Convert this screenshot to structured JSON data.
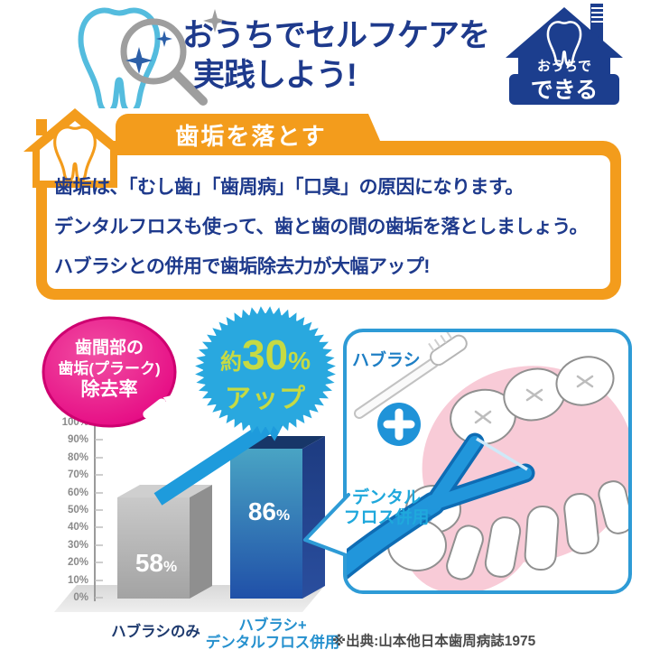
{
  "header": {
    "title_line1": "おうちでセルフケアを",
    "title_line2": "実践しよう!",
    "badge": {
      "top": "おうちで",
      "bottom": "できる"
    }
  },
  "plaque_section": {
    "tab_label": "歯垢を落とす",
    "body_lines": [
      "歯垢は、「むし歯」「歯周病」「口臭」の原因になります。",
      "デンタルフロスも使って、歯と歯の間の歯垢を落としましょう。",
      "ハブラシとの併用で歯垢除去力が大幅アップ!"
    ]
  },
  "stat_badge": {
    "line1": "歯間部の",
    "line2": "歯垢(プラーク)",
    "line3": "除去率"
  },
  "burst": {
    "prefix": "約",
    "value": "30",
    "unit": "%",
    "suffix": "アップ"
  },
  "chart_data": {
    "type": "bar",
    "title": "歯間部の歯垢(プラーク)除去率",
    "categories": [
      "ハブラシのみ",
      "ハブラシ+デンタルフロス併用"
    ],
    "values": [
      58,
      86
    ],
    "unit": "%",
    "ylim": [
      0,
      100
    ],
    "y_ticks": [
      "100%",
      "90%",
      "80%",
      "70%",
      "60%",
      "50%",
      "40%",
      "30%",
      "20%",
      "10%",
      "0%"
    ],
    "grid": false,
    "legend": false,
    "annotation": "約30%アップ",
    "bar_colors": [
      "#b5b5b5",
      "#2b62b4"
    ],
    "cat_display": {
      "c1": "ハブラシのみ",
      "c2a": "ハブラシ+",
      "c2b": "デンタルフロス併用"
    }
  },
  "panel": {
    "toothbrush_label": "ハブラシ",
    "floss_label_line1": "デンタル",
    "floss_label_line2": "フロス併用"
  },
  "source_note": "※出典:山本他日本歯周病誌1975",
  "colors": {
    "navy_text": "#1e3a8c",
    "orange": "#f39c1c",
    "magenta": "#e4007f",
    "burst_blue": "#29a8df",
    "burst_text": "#c6da43",
    "arrow_blue": "#1e9bdc",
    "panel_border": "#2e9bd6",
    "floss_blue": "#2196db",
    "gum_pink": "#f8cbd7",
    "category2_blue": "#2590ce"
  }
}
